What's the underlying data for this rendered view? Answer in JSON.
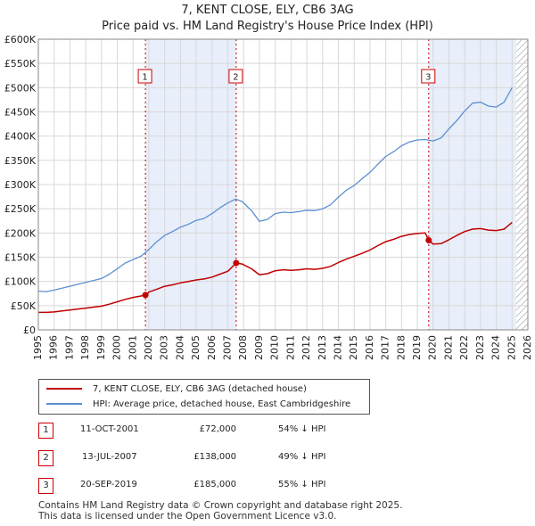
{
  "header": {
    "title": "7, KENT CLOSE, ELY, CB6 3AG",
    "subtitle": "Price paid vs. HM Land Registry's House Price Index (HPI)"
  },
  "legend": {
    "property_label": "7, KENT CLOSE, ELY, CB6 3AG (detached house)",
    "hpi_label": "HPI: Average price, detached house, East Cambridgeshire"
  },
  "transactions": [
    {
      "num": "1",
      "date": "11-OCT-2001",
      "price": "£72,000",
      "hpi": "54% ↓ HPI"
    },
    {
      "num": "2",
      "date": "13-JUL-2007",
      "price": "£138,000",
      "hpi": "49% ↓ HPI"
    },
    {
      "num": "3",
      "date": "20-SEP-2019",
      "price": "£185,000",
      "hpi": "55% ↓ HPI"
    }
  ],
  "footer": {
    "line1": "Contains HM Land Registry data © Crown copyright and database right 2025.",
    "line2": "This data is licensed under the Open Government Licence v3.0."
  },
  "colors": {
    "property": "#c00000",
    "hpi": "#5b8fd0",
    "shade": "#e8eefa",
    "hatch": "#9a9a9a",
    "grid": "#d8d8d8",
    "marker_border": "#cc0000"
  },
  "chart_data": {
    "type": "line",
    "title": "7, KENT CLOSE, ELY, CB6 3AG",
    "xlabel": "",
    "ylabel": "",
    "xlim": [
      1995,
      2026
    ],
    "ylim": [
      0,
      600000
    ],
    "y_ticks": [
      0,
      50000,
      100000,
      150000,
      200000,
      250000,
      300000,
      350000,
      400000,
      450000,
      500000,
      550000,
      600000
    ],
    "y_tick_labels": [
      "£0",
      "£50K",
      "£100K",
      "£150K",
      "£200K",
      "£250K",
      "£300K",
      "£350K",
      "£400K",
      "£450K",
      "£500K",
      "£550K",
      "£600K"
    ],
    "x_ticks": [
      1995,
      1996,
      1997,
      1998,
      1999,
      2000,
      2001,
      2002,
      2003,
      2004,
      2005,
      2006,
      2007,
      2008,
      2009,
      2010,
      2011,
      2012,
      2013,
      2014,
      2015,
      2016,
      2017,
      2018,
      2019,
      2020,
      2021,
      2022,
      2023,
      2024,
      2025,
      2026
    ],
    "x_tick_labels": [
      "1995",
      "1996",
      "1997",
      "1998",
      "1999",
      "2000",
      "2001",
      "2002",
      "2003",
      "2004",
      "2005",
      "2006",
      "2007",
      "2008",
      "2009",
      "2010",
      "2011",
      "2012",
      "2013",
      "2014",
      "2015",
      "2016",
      "2017",
      "2018",
      "2019",
      "2020",
      "2021",
      "2022",
      "2023",
      "2024",
      "2025",
      "2026"
    ],
    "grid": true,
    "shaded_ranges": [
      [
        2001.78,
        2007.53
      ],
      [
        2019.72,
        2025.25
      ]
    ],
    "future_hatch_from": 2025.25,
    "sales": [
      {
        "label": "1",
        "x": 2001.78,
        "y": 72000
      },
      {
        "label": "2",
        "x": 2007.53,
        "y": 138000
      },
      {
        "label": "3",
        "x": 2019.72,
        "y": 185000
      }
    ],
    "series": [
      {
        "name": "HPI: Average price, detached house, East Cambridgeshire",
        "x": [
          1995.0,
          1995.5,
          1996.0,
          1996.5,
          1997.0,
          1997.5,
          1998.0,
          1998.5,
          1999.0,
          1999.5,
          2000.0,
          2000.5,
          2001.0,
          2001.5,
          2002.0,
          2002.5,
          2003.0,
          2003.5,
          2004.0,
          2004.5,
          2005.0,
          2005.5,
          2006.0,
          2006.5,
          2007.0,
          2007.5,
          2007.9,
          2008.5,
          2009.0,
          2009.5,
          2010.0,
          2010.5,
          2011.0,
          2011.5,
          2012.0,
          2012.5,
          2013.0,
          2013.5,
          2014.0,
          2014.5,
          2015.0,
          2015.5,
          2016.0,
          2016.5,
          2017.0,
          2017.5,
          2018.0,
          2018.5,
          2019.0,
          2019.5,
          2020.0,
          2020.5,
          2021.0,
          2021.5,
          2022.0,
          2022.5,
          2023.0,
          2023.5,
          2024.0,
          2024.5,
          2025.0
        ],
        "y": [
          80000,
          79000,
          82000,
          86000,
          90000,
          94000,
          98000,
          102000,
          106000,
          115000,
          126000,
          138000,
          145000,
          152000,
          166000,
          182000,
          195000,
          203000,
          212000,
          218000,
          226000,
          230000,
          240000,
          252000,
          262000,
          270000,
          265000,
          246000,
          224000,
          228000,
          240000,
          243000,
          242000,
          244000,
          247000,
          246000,
          250000,
          258000,
          274000,
          288000,
          298000,
          312000,
          325000,
          342000,
          358000,
          368000,
          380000,
          388000,
          392000,
          393000,
          390000,
          396000,
          415000,
          432000,
          452000,
          468000,
          470000,
          462000,
          460000,
          470000,
          500000
        ]
      },
      {
        "name": "7, KENT CLOSE, ELY, CB6 3AG (detached house)",
        "x": [
          1995.0,
          1995.5,
          1996.0,
          1996.5,
          1997.0,
          1997.5,
          1998.0,
          1998.5,
          1999.0,
          1999.5,
          2000.0,
          2000.5,
          2001.0,
          2001.5,
          2001.78,
          2002.0,
          2002.5,
          2003.0,
          2003.5,
          2004.0,
          2004.5,
          2005.0,
          2005.5,
          2006.0,
          2006.5,
          2007.0,
          2007.53,
          2007.9,
          2008.5,
          2009.0,
          2009.5,
          2010.0,
          2010.5,
          2011.0,
          2011.5,
          2012.0,
          2012.5,
          2013.0,
          2013.5,
          2014.0,
          2014.5,
          2015.0,
          2015.5,
          2016.0,
          2016.5,
          2017.0,
          2017.5,
          2018.0,
          2018.5,
          2019.0,
          2019.5,
          2019.72,
          2020.0,
          2020.5,
          2021.0,
          2021.5,
          2022.0,
          2022.5,
          2023.0,
          2023.5,
          2024.0,
          2024.5,
          2025.0
        ],
        "y": [
          36000,
          36000,
          37000,
          39000,
          41000,
          43000,
          45000,
          47000,
          49000,
          53000,
          58000,
          63000,
          67000,
          70000,
          72000,
          78000,
          84000,
          90000,
          93000,
          97000,
          100000,
          103000,
          105000,
          109000,
          115000,
          121000,
          138000,
          136000,
          126000,
          114000,
          116000,
          122000,
          124000,
          123000,
          124000,
          126000,
          125000,
          127000,
          131000,
          139000,
          146000,
          152000,
          158000,
          165000,
          174000,
          182000,
          187000,
          193000,
          197000,
          199000,
          200000,
          185000,
          177000,
          178000,
          186000,
          195000,
          203000,
          208000,
          209000,
          206000,
          205000,
          208000,
          222000
        ]
      }
    ]
  }
}
